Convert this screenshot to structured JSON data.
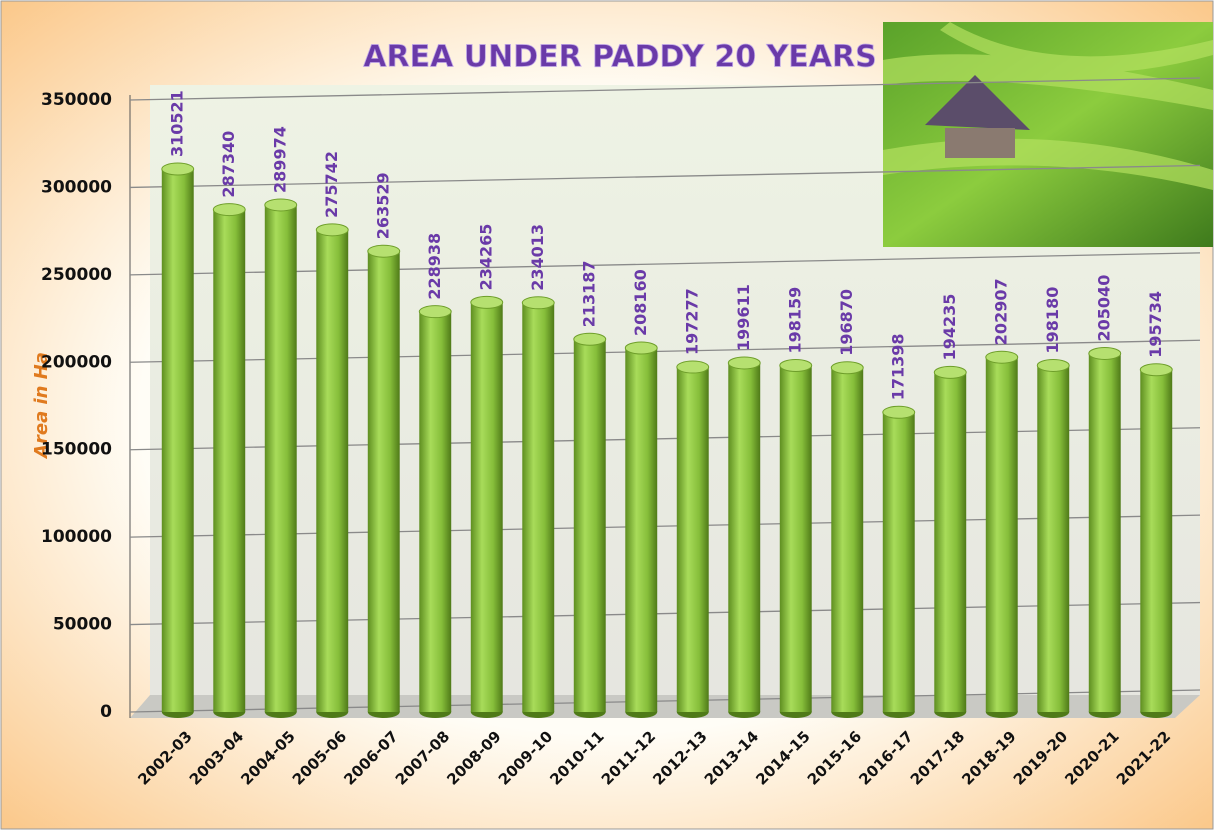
{
  "chart_data": {
    "type": "bar",
    "title": "AREA UNDER PADDY 20 YEARS",
    "y_label": "Area in Ha",
    "categories": [
      "2002-03",
      "2003-04",
      "2004-05",
      "2005-06",
      "2006-07",
      "2007-08",
      "2008-09",
      "2009-10",
      "2010-11",
      "2011-12",
      "2012-13",
      "2013-14",
      "2014-15",
      "2015-16",
      "2016-17",
      "2017-18",
      "2018-19",
      "2019-20",
      "2020-21",
      "2021-22"
    ],
    "values": [
      310521,
      287340,
      289974,
      275742,
      263529,
      228938,
      234265,
      234013,
      213187,
      208160,
      197277,
      199611,
      198159,
      196870,
      171398,
      194235,
      202907,
      198180,
      205040,
      195734
    ],
    "color": "#8cc43c",
    "ylim": [
      0,
      350000
    ],
    "yticks": [
      0,
      50000,
      100000,
      150000,
      200000,
      250000,
      300000,
      350000
    ],
    "grid": true
  }
}
